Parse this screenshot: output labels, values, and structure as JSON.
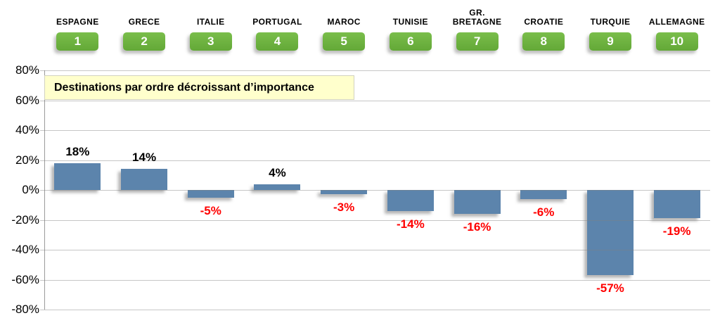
{
  "chart_data": {
    "type": "bar",
    "title": "Destinations par ordre décroissant d’importance",
    "categories": [
      "ESPAGNE",
      "GRECE",
      "ITALIE",
      "PORTUGAL",
      "MAROC",
      "TUNISIE",
      "GR.\nBRETAGNE",
      "CROATIE",
      "TURQUIE",
      "ALLEMAGNE"
    ],
    "ranks": [
      "1",
      "2",
      "3",
      "4",
      "5",
      "6",
      "7",
      "8",
      "9",
      "10"
    ],
    "values": [
      18,
      14,
      -5,
      4,
      -3,
      -14,
      -16,
      -6,
      -57,
      -19
    ],
    "value_labels": [
      "18%",
      "14%",
      "-5%",
      "4%",
      "-3%",
      "-14%",
      "-16%",
      "-6%",
      "-57%",
      "-19%"
    ],
    "ytick_labels": [
      "80%",
      "60%",
      "40%",
      "20%",
      "0%",
      "-20%",
      "-40%",
      "-60%",
      "-80%"
    ],
    "ylim": [
      -80,
      80
    ],
    "ytick_step": 20,
    "grid": true,
    "legend": "none",
    "xlabel": "",
    "ylabel": "",
    "colors": {
      "bar": "#5C84AC",
      "badge_top": "#7ABE4B",
      "badge_bottom": "#63A837",
      "positive_label": "#000000",
      "negative_label": "#FF0000",
      "title_background": "#FFFFCC"
    }
  }
}
